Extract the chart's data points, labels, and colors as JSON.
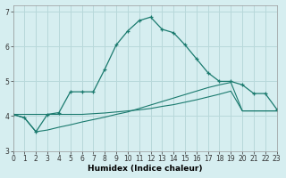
{
  "xlabel": "Humidex (Indice chaleur)",
  "background_color": "#d6eef0",
  "grid_color": "#b8d8da",
  "line_color": "#1a7a6e",
  "x_values": [
    0,
    1,
    2,
    3,
    4,
    5,
    6,
    7,
    8,
    9,
    10,
    11,
    12,
    13,
    14,
    15,
    16,
    17,
    18,
    19,
    20,
    21,
    22,
    23
  ],
  "series1": [
    4.05,
    3.95,
    3.55,
    4.05,
    4.1,
    4.7,
    4.7,
    4.7,
    5.35,
    6.05,
    6.45,
    6.75,
    6.85,
    6.5,
    6.4,
    6.05,
    5.65,
    5.25,
    5.0,
    5.0,
    4.9,
    4.65,
    4.65,
    4.2
  ],
  "series2": [
    4.05,
    4.05,
    4.05,
    4.05,
    4.05,
    4.05,
    4.05,
    4.07,
    4.09,
    4.12,
    4.15,
    4.18,
    4.22,
    4.28,
    4.33,
    4.4,
    4.47,
    4.55,
    4.63,
    4.72,
    4.15,
    4.15,
    4.15,
    4.15
  ],
  "series3": [
    4.05,
    3.95,
    3.55,
    3.6,
    3.68,
    3.75,
    3.83,
    3.9,
    3.97,
    4.05,
    4.12,
    4.22,
    4.32,
    4.42,
    4.52,
    4.62,
    4.72,
    4.82,
    4.9,
    4.97,
    4.15,
    4.15,
    4.15,
    4.15
  ],
  "ylim": [
    3.0,
    7.2
  ],
  "xlim": [
    0,
    23
  ],
  "yticks": [
    3,
    4,
    5,
    6,
    7
  ],
  "xticks": [
    0,
    1,
    2,
    3,
    4,
    5,
    6,
    7,
    8,
    9,
    10,
    11,
    12,
    13,
    14,
    15,
    16,
    17,
    18,
    19,
    20,
    21,
    22,
    23
  ],
  "tick_fontsize": 5.5,
  "xlabel_fontsize": 6.5
}
